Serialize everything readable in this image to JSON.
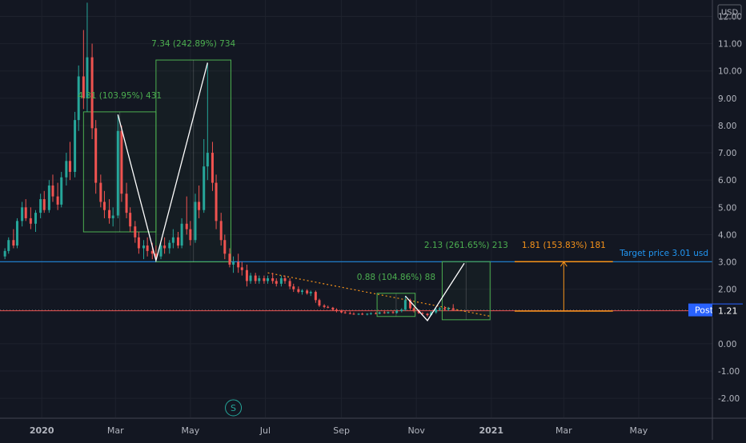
{
  "chart_data": {
    "type": "candlestick",
    "title": "",
    "currency": "USD",
    "ylim": [
      -2.7,
      12.6
    ],
    "y_ticks": [
      "12.00",
      "11.00",
      "10.00",
      "9.00",
      "8.00",
      "7.00",
      "6.00",
      "5.00",
      "4.00",
      "3.00",
      "2.00",
      "0.00",
      "-1.00",
      "-2.00"
    ],
    "y_tick_values": [
      12,
      11,
      10,
      9,
      8,
      7,
      6,
      5,
      4,
      3,
      2,
      0,
      -1,
      -2
    ],
    "x_ticks": [
      "2020",
      "Mar",
      "May",
      "Jul",
      "Sep",
      "Nov",
      "2021",
      "Mar",
      "May"
    ],
    "x_tick_dates": [
      "2020-01-01",
      "2020-03-01",
      "2020-05-01",
      "2020-07-01",
      "2020-09-01",
      "2020-11-01",
      "2021-01-01",
      "2021-03-01",
      "2021-05-01"
    ],
    "x_range": [
      "2019-11-28",
      "2021-06-30"
    ],
    "price_line": {
      "label": "Post",
      "value": "1.24",
      "color": "#2962ff"
    },
    "level_marker": {
      "value": "1.21",
      "color": "#ef5350"
    },
    "target_line": {
      "label": "Target price 3.01 usd",
      "value": 3.01,
      "color": "#2196f3"
    },
    "split_marker": "S",
    "colors": {
      "up": "#26a69a",
      "down": "#ef5350",
      "box": "#4caf50",
      "projection": "#f7931a"
    },
    "candles": [
      [
        "2019-12-02",
        3.2,
        3.5,
        3.1,
        3.4
      ],
      [
        "2019-12-05",
        3.4,
        3.9,
        3.3,
        3.8
      ],
      [
        "2019-12-09",
        3.8,
        4.2,
        3.5,
        3.6
      ],
      [
        "2019-12-12",
        3.6,
        4.6,
        3.5,
        4.5
      ],
      [
        "2019-12-16",
        4.5,
        5.2,
        4.3,
        5.0
      ],
      [
        "2019-12-19",
        5.0,
        5.3,
        4.5,
        4.6
      ],
      [
        "2019-12-23",
        4.6,
        5.0,
        4.2,
        4.4
      ],
      [
        "2019-12-27",
        4.4,
        4.9,
        4.1,
        4.8
      ],
      [
        "2019-12-31",
        4.8,
        5.5,
        4.6,
        5.3
      ],
      [
        "2020-01-03",
        5.3,
        5.6,
        4.8,
        4.9
      ],
      [
        "2020-01-07",
        4.9,
        6.0,
        4.8,
        5.8
      ],
      [
        "2020-01-10",
        5.8,
        6.2,
        5.2,
        5.4
      ],
      [
        "2020-01-14",
        5.4,
        5.9,
        4.9,
        5.1
      ],
      [
        "2020-01-17",
        5.1,
        6.3,
        5.0,
        6.1
      ],
      [
        "2020-01-21",
        6.1,
        7.0,
        5.8,
        6.7
      ],
      [
        "2020-01-24",
        6.7,
        7.4,
        6.0,
        6.3
      ],
      [
        "2020-01-28",
        6.3,
        8.5,
        6.1,
        8.2
      ],
      [
        "2020-01-31",
        8.2,
        10.2,
        7.8,
        9.8
      ],
      [
        "2020-02-04",
        9.8,
        11.5,
        8.6,
        9.0
      ],
      [
        "2020-02-07",
        9.0,
        12.5,
        8.5,
        10.5
      ],
      [
        "2020-02-11",
        10.5,
        11.0,
        7.5,
        7.9
      ],
      [
        "2020-02-14",
        7.9,
        8.2,
        5.5,
        5.9
      ],
      [
        "2020-02-18",
        5.9,
        6.2,
        5.0,
        5.2
      ],
      [
        "2020-02-21",
        5.2,
        5.6,
        4.6,
        4.9
      ],
      [
        "2020-02-25",
        4.9,
        5.3,
        4.4,
        4.6
      ],
      [
        "2020-02-28",
        4.6,
        5.0,
        4.3,
        4.7
      ],
      [
        "2020-03-03",
        4.7,
        8.4,
        4.6,
        7.8
      ],
      [
        "2020-03-06",
        7.8,
        8.0,
        5.2,
        5.5
      ],
      [
        "2020-03-10",
        5.5,
        5.9,
        4.6,
        4.8
      ],
      [
        "2020-03-13",
        4.8,
        5.0,
        4.1,
        4.3
      ],
      [
        "2020-03-17",
        4.3,
        4.5,
        3.7,
        3.9
      ],
      [
        "2020-03-20",
        3.9,
        4.1,
        3.3,
        3.5
      ],
      [
        "2020-03-24",
        3.5,
        3.8,
        3.1,
        3.6
      ],
      [
        "2020-03-27",
        3.6,
        3.9,
        3.2,
        3.4
      ],
      [
        "2020-03-31",
        3.4,
        3.7,
        3.1,
        3.3
      ],
      [
        "2020-04-03",
        3.3,
        3.6,
        3.05,
        3.2
      ],
      [
        "2020-04-07",
        3.2,
        3.7,
        3.1,
        3.6
      ],
      [
        "2020-04-10",
        3.6,
        3.9,
        3.3,
        3.5
      ],
      [
        "2020-04-14",
        3.5,
        3.8,
        3.3,
        3.7
      ],
      [
        "2020-04-17",
        3.7,
        4.2,
        3.5,
        3.9
      ],
      [
        "2020-04-21",
        3.9,
        4.1,
        3.5,
        3.6
      ],
      [
        "2020-04-24",
        3.6,
        4.6,
        3.5,
        4.4
      ],
      [
        "2020-04-28",
        4.4,
        5.4,
        4.0,
        4.2
      ],
      [
        "2020-05-01",
        4.2,
        4.5,
        3.6,
        3.8
      ],
      [
        "2020-05-05",
        3.8,
        5.5,
        3.7,
        5.2
      ],
      [
        "2020-05-08",
        5.2,
        5.8,
        4.6,
        4.9
      ],
      [
        "2020-05-12",
        4.9,
        7.5,
        4.8,
        6.5
      ],
      [
        "2020-05-15",
        6.5,
        10.3,
        6.0,
        7.0
      ],
      [
        "2020-05-19",
        7.0,
        7.4,
        5.6,
        5.9
      ],
      [
        "2020-05-22",
        5.9,
        6.2,
        4.2,
        4.5
      ],
      [
        "2020-05-26",
        4.5,
        4.8,
        3.6,
        3.8
      ],
      [
        "2020-05-29",
        3.8,
        4.0,
        3.1,
        3.3
      ],
      [
        "2020-06-02",
        3.3,
        3.5,
        2.8,
        2.9
      ],
      [
        "2020-06-05",
        2.9,
        3.2,
        2.6,
        3.0
      ],
      [
        "2020-06-09",
        3.0,
        3.3,
        2.6,
        2.8
      ],
      [
        "2020-06-12",
        2.8,
        3.0,
        2.5,
        2.7
      ],
      [
        "2020-06-16",
        2.7,
        2.9,
        2.1,
        2.3
      ],
      [
        "2020-06-19",
        2.3,
        2.6,
        2.2,
        2.5
      ],
      [
        "2020-06-23",
        2.5,
        2.6,
        2.2,
        2.3
      ],
      [
        "2020-06-26",
        2.3,
        2.5,
        2.2,
        2.4
      ],
      [
        "2020-06-30",
        2.4,
        2.5,
        2.2,
        2.3
      ],
      [
        "2020-07-03",
        2.3,
        2.5,
        2.2,
        2.4
      ],
      [
        "2020-07-07",
        2.4,
        2.6,
        2.2,
        2.3
      ],
      [
        "2020-07-10",
        2.3,
        2.4,
        2.1,
        2.2
      ],
      [
        "2020-07-14",
        2.2,
        2.5,
        2.1,
        2.4
      ],
      [
        "2020-07-17",
        2.4,
        2.5,
        2.2,
        2.3
      ],
      [
        "2020-07-21",
        2.3,
        2.4,
        2.0,
        2.1
      ],
      [
        "2020-07-24",
        2.1,
        2.2,
        1.9,
        2.0
      ],
      [
        "2020-07-28",
        2.0,
        2.1,
        1.85,
        1.9
      ],
      [
        "2020-07-31",
        1.9,
        2.0,
        1.8,
        1.95
      ],
      [
        "2020-08-04",
        1.95,
        2.0,
        1.8,
        1.85
      ],
      [
        "2020-08-07",
        1.85,
        1.95,
        1.75,
        1.9
      ],
      [
        "2020-08-11",
        1.9,
        1.95,
        1.5,
        1.6
      ],
      [
        "2020-08-14",
        1.6,
        1.65,
        1.35,
        1.4
      ],
      [
        "2020-08-18",
        1.4,
        1.45,
        1.3,
        1.35
      ],
      [
        "2020-08-21",
        1.35,
        1.4,
        1.3,
        1.32
      ],
      [
        "2020-08-25",
        1.32,
        1.35,
        1.2,
        1.25
      ],
      [
        "2020-08-28",
        1.25,
        1.3,
        1.15,
        1.2
      ],
      [
        "2020-09-01",
        1.2,
        1.25,
        1.12,
        1.15
      ],
      [
        "2020-09-04",
        1.15,
        1.2,
        1.1,
        1.12
      ],
      [
        "2020-09-08",
        1.12,
        1.18,
        1.08,
        1.1
      ],
      [
        "2020-09-11",
        1.1,
        1.15,
        1.06,
        1.08
      ],
      [
        "2020-09-15",
        1.08,
        1.12,
        1.05,
        1.1
      ],
      [
        "2020-09-18",
        1.1,
        1.14,
        1.05,
        1.07
      ],
      [
        "2020-09-22",
        1.07,
        1.12,
        1.04,
        1.1
      ],
      [
        "2020-09-25",
        1.1,
        1.15,
        1.06,
        1.12
      ],
      [
        "2020-09-29",
        1.12,
        1.16,
        1.08,
        1.1
      ],
      [
        "2020-10-02",
        1.1,
        1.18,
        1.08,
        1.15
      ],
      [
        "2020-10-06",
        1.15,
        1.2,
        1.1,
        1.12
      ],
      [
        "2020-10-09",
        1.12,
        1.18,
        1.1,
        1.16
      ],
      [
        "2020-10-13",
        1.16,
        1.2,
        1.1,
        1.13
      ],
      [
        "2020-10-16",
        1.13,
        1.25,
        1.1,
        1.2
      ],
      [
        "2020-10-20",
        1.2,
        1.3,
        1.15,
        1.25
      ],
      [
        "2020-10-23",
        1.25,
        1.75,
        1.2,
        1.6
      ],
      [
        "2020-10-27",
        1.6,
        1.65,
        1.25,
        1.3
      ],
      [
        "2020-10-30",
        1.3,
        1.35,
        1.15,
        1.2
      ],
      [
        "2020-11-03",
        1.2,
        1.25,
        1.1,
        1.12
      ],
      [
        "2020-11-06",
        1.12,
        1.16,
        1.08,
        1.1
      ],
      [
        "2020-11-10",
        1.1,
        1.13,
        1.0,
        1.05
      ],
      [
        "2020-11-13",
        1.05,
        1.2,
        1.03,
        1.15
      ],
      [
        "2020-11-17",
        1.15,
        1.3,
        1.1,
        1.25
      ],
      [
        "2020-11-20",
        1.25,
        1.35,
        1.2,
        1.3
      ],
      [
        "2020-11-24",
        1.3,
        1.38,
        1.22,
        1.26
      ],
      [
        "2020-11-27",
        1.26,
        1.35,
        1.2,
        1.3
      ],
      [
        "2020-12-01",
        1.3,
        1.45,
        1.2,
        1.24
      ]
    ],
    "annotations": [
      {
        "kind": "box",
        "from": "2020-02-04",
        "to": "2020-04-03",
        "low": 4.1,
        "high": 8.5,
        "text": "4.31 (103.95%) 431"
      },
      {
        "kind": "box",
        "from": "2020-04-03",
        "to": "2020-06-03",
        "low": 3.0,
        "high": 10.4,
        "text": "7.34 (242.89%) 734"
      },
      {
        "kind": "box",
        "from": "2020-09-30",
        "to": "2020-10-31",
        "low": 1.0,
        "high": 1.85,
        "text": "0.88 (104.86%) 88"
      },
      {
        "kind": "box",
        "from": "2020-11-22",
        "to": "2020-12-31",
        "low": 0.88,
        "high": 3.01,
        "text": "2.13 (261.65%) 213"
      },
      {
        "kind": "projection",
        "from": "2021-01-20",
        "to": "2021-04-10",
        "low": 1.2,
        "high": 3.01,
        "text": "1.81 (153.83%) 181"
      }
    ],
    "path_lines": [
      [
        [
          "2020-03-03",
          8.4
        ],
        [
          "2020-04-03",
          3.05
        ],
        [
          "2020-05-15",
          10.3
        ]
      ],
      [
        [
          "2020-10-23",
          1.75
        ],
        [
          "2020-11-10",
          0.85
        ],
        [
          "2020-12-10",
          2.95
        ]
      ]
    ],
    "trendline": [
      [
        "2020-07-03",
        2.6
      ],
      [
        "2021-01-01",
        1.0
      ]
    ]
  }
}
